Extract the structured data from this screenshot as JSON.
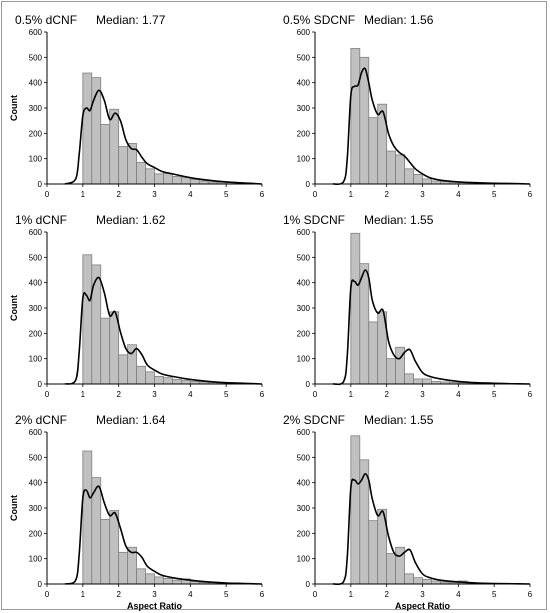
{
  "colors": {
    "bar_fill": "#c0c0c0",
    "bar_stroke": "#7f7f7f",
    "curve": "#000000",
    "axis": "#000000"
  },
  "chart_data": [
    {
      "type": "bar",
      "title": "0.5% dCNF",
      "subtitle": "Median: 1.77",
      "xlabel": "",
      "ylabel": "Count",
      "xlim": [
        0,
        6
      ],
      "ylim": [
        0,
        600
      ],
      "xticks": [
        0,
        1,
        2,
        3,
        4,
        5,
        6
      ],
      "yticks": [
        0,
        100,
        200,
        300,
        400,
        500,
        600
      ],
      "grid": false,
      "bin_edges": [
        0.75,
        1.0,
        1.25,
        1.5,
        1.75,
        2.0,
        2.25,
        2.5,
        2.75,
        3.0,
        3.25,
        3.5,
        3.75,
        4.0,
        4.25,
        4.5,
        4.75,
        5.0,
        5.25,
        5.5,
        5.75
      ],
      "values": [
        0,
        438,
        420,
        235,
        295,
        148,
        160,
        85,
        60,
        40,
        42,
        30,
        25,
        18,
        12,
        8,
        7,
        6,
        4,
        2
      ],
      "curve": {
        "x": [
          0.5,
          0.8,
          0.9,
          1.0,
          1.1,
          1.2,
          1.3,
          1.45,
          1.6,
          1.75,
          1.9,
          2.05,
          2.2,
          2.35,
          2.5,
          2.65,
          2.8,
          3.0,
          3.2,
          3.5,
          4.0,
          4.5,
          5.0,
          5.5,
          6.0
        ],
        "y": [
          0,
          20,
          120,
          270,
          300,
          290,
          330,
          370,
          330,
          255,
          280,
          250,
          175,
          140,
          135,
          105,
          80,
          65,
          50,
          40,
          25,
          15,
          8,
          4,
          0
        ]
      }
    },
    {
      "type": "bar",
      "title": "0.5% SDCNF",
      "subtitle": "Median: 1.56",
      "xlabel": "",
      "ylabel": "",
      "xlim": [
        0,
        6
      ],
      "ylim": [
        0,
        600
      ],
      "xticks": [
        0,
        1,
        2,
        3,
        4,
        5,
        6
      ],
      "yticks": [
        0,
        100,
        200,
        300,
        400,
        500,
        600
      ],
      "grid": false,
      "bin_edges": [
        0.75,
        1.0,
        1.25,
        1.5,
        1.75,
        2.0,
        2.25,
        2.5,
        2.75,
        3.0,
        3.25,
        3.5,
        3.75,
        4.0,
        4.25,
        4.5,
        4.75,
        5.0,
        5.25,
        5.5,
        5.75
      ],
      "values": [
        0,
        535,
        500,
        262,
        315,
        130,
        115,
        60,
        38,
        20,
        12,
        10,
        8,
        6,
        5,
        4,
        3,
        2,
        1,
        1
      ],
      "curve": {
        "x": [
          0.5,
          0.8,
          0.9,
          1.0,
          1.1,
          1.2,
          1.3,
          1.4,
          1.5,
          1.6,
          1.75,
          1.9,
          2.05,
          2.2,
          2.35,
          2.5,
          2.65,
          2.8,
          3.0,
          3.2,
          3.5,
          4.0,
          4.5,
          5.0,
          5.5,
          6.0
        ],
        "y": [
          0,
          10,
          100,
          350,
          385,
          390,
          440,
          455,
          400,
          330,
          275,
          285,
          200,
          150,
          125,
          110,
          85,
          60,
          40,
          25,
          15,
          8,
          5,
          3,
          2,
          0
        ]
      }
    },
    {
      "type": "bar",
      "title": "1% dCNF",
      "subtitle": "Median: 1.62",
      "xlabel": "",
      "ylabel": "Count",
      "xlim": [
        0,
        6
      ],
      "ylim": [
        0,
        600
      ],
      "xticks": [
        0,
        1,
        2,
        3,
        4,
        5,
        6
      ],
      "yticks": [
        0,
        100,
        200,
        300,
        400,
        500,
        600
      ],
      "grid": false,
      "bin_edges": [
        0.75,
        1.0,
        1.25,
        1.5,
        1.75,
        2.0,
        2.25,
        2.5,
        2.75,
        3.0,
        3.25,
        3.5,
        3.75,
        4.0,
        4.25,
        4.5,
        4.75,
        5.0,
        5.25,
        5.5,
        5.75
      ],
      "values": [
        0,
        510,
        470,
        260,
        285,
        115,
        155,
        70,
        48,
        30,
        25,
        18,
        15,
        10,
        8,
        6,
        5,
        4,
        2,
        1
      ],
      "curve": {
        "x": [
          0.5,
          0.8,
          0.9,
          1.0,
          1.1,
          1.2,
          1.3,
          1.45,
          1.6,
          1.75,
          1.9,
          2.05,
          2.2,
          2.35,
          2.5,
          2.65,
          2.8,
          3.0,
          3.2,
          3.5,
          4.0,
          4.5,
          5.0,
          5.5,
          6.0
        ],
        "y": [
          0,
          15,
          130,
          340,
          350,
          330,
          390,
          420,
          360,
          270,
          285,
          205,
          140,
          120,
          140,
          115,
          75,
          55,
          40,
          30,
          18,
          10,
          5,
          3,
          0
        ]
      }
    },
    {
      "type": "bar",
      "title": "1% SDCNF",
      "subtitle": "Median: 1.55",
      "xlabel": "",
      "ylabel": "",
      "xlim": [
        0,
        6
      ],
      "ylim": [
        0,
        600
      ],
      "xticks": [
        0,
        1,
        2,
        3,
        4,
        5,
        6
      ],
      "yticks": [
        0,
        100,
        200,
        300,
        400,
        500,
        600
      ],
      "grid": false,
      "bin_edges": [
        0.75,
        1.0,
        1.25,
        1.5,
        1.75,
        2.0,
        2.25,
        2.5,
        2.75,
        3.0,
        3.25,
        3.5,
        3.75,
        4.0,
        4.25,
        4.5,
        4.75,
        5.0,
        5.25,
        5.5,
        5.75
      ],
      "values": [
        0,
        595,
        475,
        245,
        285,
        100,
        145,
        40,
        20,
        20,
        10,
        8,
        6,
        5,
        4,
        3,
        2,
        1,
        1,
        0
      ],
      "curve": {
        "x": [
          0.5,
          0.8,
          0.9,
          1.0,
          1.1,
          1.2,
          1.3,
          1.4,
          1.5,
          1.6,
          1.75,
          1.9,
          2.05,
          2.2,
          2.35,
          2.5,
          2.65,
          2.8,
          3.0,
          3.2,
          3.5,
          4.0,
          4.5,
          5.0,
          5.5,
          6.0
        ],
        "y": [
          0,
          10,
          110,
          380,
          405,
          390,
          420,
          450,
          420,
          330,
          280,
          290,
          170,
          115,
          100,
          125,
          135,
          90,
          45,
          30,
          20,
          10,
          5,
          3,
          1,
          0
        ]
      }
    },
    {
      "type": "bar",
      "title": "2% dCNF",
      "subtitle": "Median: 1.64",
      "xlabel": "Aspect Ratio",
      "ylabel": "Count",
      "xlim": [
        0,
        6
      ],
      "ylim": [
        0,
        600
      ],
      "xticks": [
        0,
        1,
        2,
        3,
        4,
        5,
        6
      ],
      "yticks": [
        0,
        100,
        200,
        300,
        400,
        500,
        600
      ],
      "grid": false,
      "bin_edges": [
        0.75,
        1.0,
        1.25,
        1.5,
        1.75,
        2.0,
        2.25,
        2.5,
        2.75,
        3.0,
        3.25,
        3.5,
        3.75,
        4.0,
        4.25,
        4.5,
        4.75,
        5.0,
        5.25,
        5.5,
        5.75
      ],
      "values": [
        0,
        525,
        420,
        255,
        290,
        125,
        145,
        60,
        40,
        28,
        22,
        15,
        20,
        10,
        6,
        5,
        4,
        3,
        2,
        1
      ],
      "curve": {
        "x": [
          0.5,
          0.8,
          0.9,
          1.0,
          1.1,
          1.2,
          1.3,
          1.45,
          1.6,
          1.75,
          1.9,
          2.05,
          2.2,
          2.35,
          2.5,
          2.65,
          2.8,
          3.0,
          3.2,
          3.5,
          4.0,
          4.5,
          5.0,
          5.5,
          6.0
        ],
        "y": [
          0,
          15,
          120,
          340,
          370,
          340,
          360,
          385,
          320,
          270,
          280,
          220,
          150,
          125,
          125,
          105,
          70,
          50,
          35,
          25,
          15,
          8,
          4,
          2,
          0
        ]
      }
    },
    {
      "type": "bar",
      "title": "2% SDCNF",
      "subtitle": "Median: 1.55",
      "xlabel": "Aspect Ratio",
      "ylabel": "",
      "xlim": [
        0,
        6
      ],
      "ylim": [
        0,
        600
      ],
      "xticks": [
        0,
        1,
        2,
        3,
        4,
        5,
        6
      ],
      "yticks": [
        0,
        100,
        200,
        300,
        400,
        500,
        600
      ],
      "grid": false,
      "bin_edges": [
        0.75,
        1.0,
        1.25,
        1.5,
        1.75,
        2.0,
        2.25,
        2.5,
        2.75,
        3.0,
        3.25,
        3.5,
        3.75,
        4.0,
        4.25,
        4.5,
        4.75,
        5.0,
        5.25,
        5.5,
        5.75
      ],
      "values": [
        0,
        585,
        490,
        250,
        295,
        120,
        145,
        40,
        25,
        18,
        12,
        8,
        6,
        12,
        5,
        3,
        2,
        1,
        1,
        0
      ],
      "curve": {
        "x": [
          0.5,
          0.8,
          0.9,
          1.0,
          1.1,
          1.2,
          1.3,
          1.4,
          1.5,
          1.6,
          1.75,
          1.9,
          2.05,
          2.2,
          2.35,
          2.5,
          2.65,
          2.8,
          3.0,
          3.2,
          3.5,
          4.0,
          4.5,
          5.0,
          5.5,
          6.0
        ],
        "y": [
          0,
          10,
          105,
          380,
          410,
          395,
          410,
          435,
          410,
          335,
          270,
          285,
          190,
          125,
          110,
          125,
          135,
          85,
          40,
          25,
          15,
          8,
          4,
          2,
          1,
          0
        ]
      }
    }
  ]
}
